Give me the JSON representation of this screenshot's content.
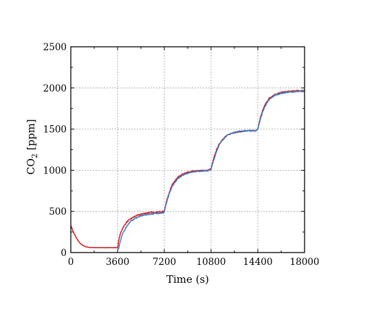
{
  "chart_data": {
    "type": "line",
    "title": "",
    "xlabel": "Time (s)",
    "ylabel_main": "CO",
    "ylabel_sub": "2",
    "ylabel_unit": " [ppm]",
    "xlim": [
      0,
      18000
    ],
    "ylim": [
      0,
      2500
    ],
    "xticks": [
      0,
      3600,
      7200,
      10800,
      14400,
      18000
    ],
    "yticks": [
      0,
      500,
      1000,
      1500,
      2000,
      2500
    ],
    "x_tick_labels": [
      "0",
      "3600",
      "7200",
      "10800",
      "14400",
      "18000"
    ],
    "y_tick_labels": [
      "0",
      "500",
      "1000",
      "1500",
      "2000",
      "2500"
    ],
    "grid": true,
    "legend": "none",
    "series": [
      {
        "color": "#d62028",
        "points": [
          [
            0,
            330
          ],
          [
            100,
            290
          ],
          [
            200,
            250
          ],
          [
            300,
            215
          ],
          [
            400,
            185
          ],
          [
            500,
            160
          ],
          [
            600,
            135
          ],
          [
            700,
            115
          ],
          [
            800,
            100
          ],
          [
            900,
            90
          ],
          [
            1000,
            80
          ],
          [
            1200,
            68
          ],
          [
            1500,
            62
          ],
          [
            2000,
            60
          ],
          [
            3000,
            60
          ],
          [
            3550,
            60
          ],
          [
            3600,
            60
          ],
          [
            3700,
            150
          ],
          [
            3800,
            220
          ],
          [
            4000,
            300
          ],
          [
            4300,
            370
          ],
          [
            4600,
            410
          ],
          [
            5000,
            445
          ],
          [
            5500,
            470
          ],
          [
            6000,
            485
          ],
          [
            6500,
            490
          ],
          [
            7000,
            495
          ],
          [
            7150,
            497
          ],
          [
            7200,
            510
          ],
          [
            7400,
            640
          ],
          [
            7600,
            740
          ],
          [
            7800,
            820
          ],
          [
            8000,
            870
          ],
          [
            8300,
            920
          ],
          [
            8600,
            950
          ],
          [
            9000,
            975
          ],
          [
            9500,
            990
          ],
          [
            10000,
            995
          ],
          [
            10600,
            1000
          ],
          [
            10800,
            1020
          ],
          [
            11000,
            1140
          ],
          [
            11200,
            1240
          ],
          [
            11400,
            1310
          ],
          [
            11700,
            1380
          ],
          [
            12000,
            1420
          ],
          [
            12400,
            1450
          ],
          [
            12800,
            1465
          ],
          [
            13300,
            1475
          ],
          [
            14000,
            1480
          ],
          [
            14300,
            1482
          ],
          [
            14400,
            1500
          ],
          [
            14600,
            1640
          ],
          [
            14800,
            1740
          ],
          [
            15000,
            1810
          ],
          [
            15300,
            1880
          ],
          [
            15700,
            1920
          ],
          [
            16200,
            1945
          ],
          [
            16800,
            1958
          ],
          [
            17400,
            1965
          ],
          [
            18000,
            1968
          ]
        ]
      },
      {
        "color": "#3d7bbf",
        "points": [
          [
            3650,
            40
          ],
          [
            3700,
            60
          ],
          [
            3800,
            130
          ],
          [
            4000,
            230
          ],
          [
            4300,
            320
          ],
          [
            4600,
            380
          ],
          [
            5000,
            420
          ],
          [
            5500,
            450
          ],
          [
            6000,
            465
          ],
          [
            6500,
            475
          ],
          [
            7000,
            480
          ],
          [
            7150,
            482
          ],
          [
            7200,
            500
          ],
          [
            7400,
            620
          ],
          [
            7600,
            720
          ],
          [
            7800,
            800
          ],
          [
            8000,
            850
          ],
          [
            8300,
            905
          ],
          [
            8600,
            940
          ],
          [
            9000,
            965
          ],
          [
            9500,
            985
          ],
          [
            10000,
            990
          ],
          [
            10600,
            995
          ],
          [
            10800,
            1010
          ],
          [
            11000,
            1120
          ],
          [
            11200,
            1220
          ],
          [
            11400,
            1300
          ],
          [
            11700,
            1370
          ],
          [
            12000,
            1420
          ],
          [
            12400,
            1450
          ],
          [
            12800,
            1470
          ],
          [
            13300,
            1478
          ],
          [
            14000,
            1482
          ],
          [
            14300,
            1485
          ],
          [
            14400,
            1500
          ],
          [
            14600,
            1620
          ],
          [
            14800,
            1720
          ],
          [
            15000,
            1790
          ],
          [
            15300,
            1860
          ],
          [
            15700,
            1910
          ],
          [
            16200,
            1935
          ],
          [
            16800,
            1950
          ],
          [
            17400,
            1955
          ],
          [
            18000,
            1958
          ]
        ]
      }
    ]
  }
}
